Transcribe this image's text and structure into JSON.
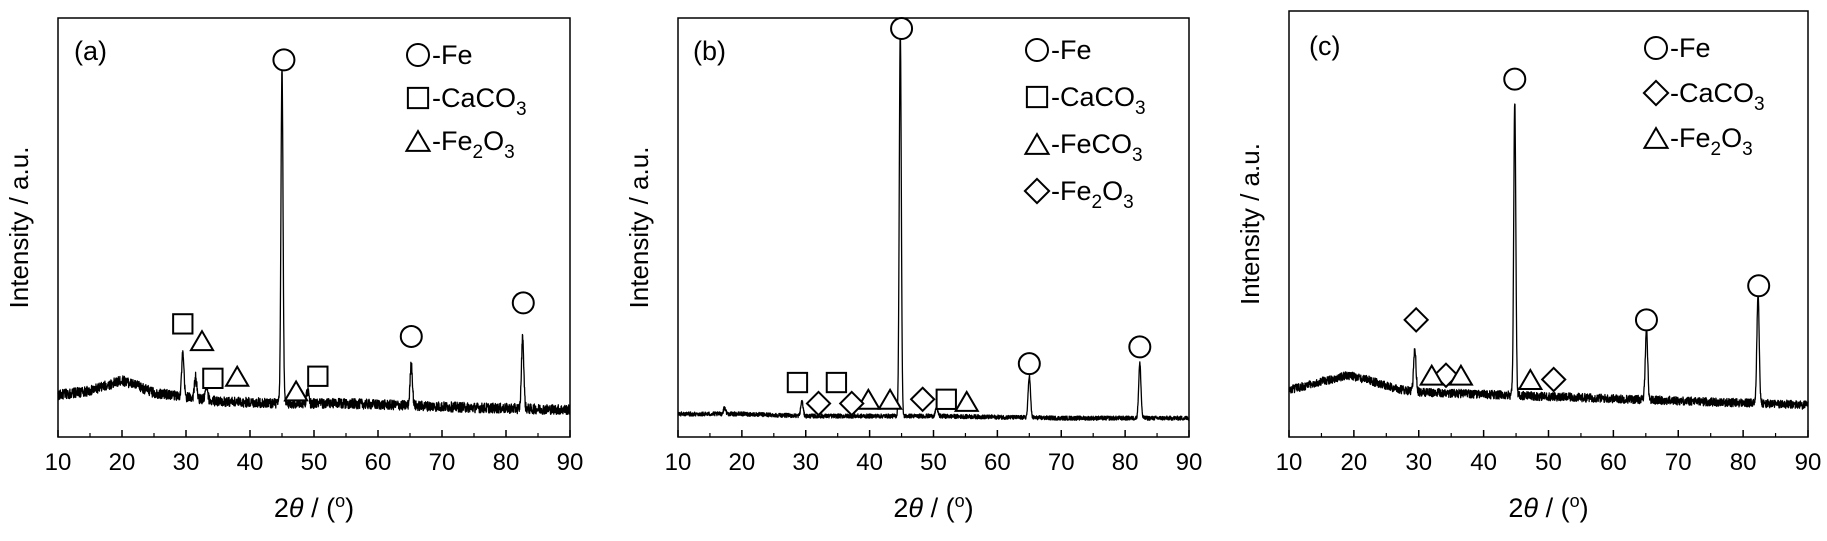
{
  "chart_data": [
    {
      "type": "line",
      "panel_label": "(a)",
      "xlabel_prefix": "2",
      "xlabel_theta": "θ",
      "xlabel_suffix": " / (",
      "xlabel_unit": "o",
      "xlabel_close": ")",
      "ylabel": "Intensity / a.u.",
      "xlim": [
        10,
        90
      ],
      "ylim": [
        0,
        100
      ],
      "xticks": [
        "10",
        "20",
        "30",
        "40",
        "50",
        "60",
        "70",
        "80",
        "90"
      ],
      "legend": [
        {
          "marker": "circle",
          "text": "-Fe",
          "sub": "",
          "tail": ""
        },
        {
          "marker": "square",
          "text": "-CaCO",
          "sub": "3",
          "tail": ""
        },
        {
          "marker": "triangle",
          "text": "-Fe",
          "sub": "2",
          "tail": "O",
          "sub2": "3"
        }
      ],
      "baseline": [
        [
          10,
          10
        ],
        [
          15,
          11
        ],
        [
          20,
          13.5
        ],
        [
          22,
          12.5
        ],
        [
          25,
          10.5
        ],
        [
          28,
          10
        ],
        [
          35,
          8.5
        ],
        [
          45,
          8
        ],
        [
          55,
          8
        ],
        [
          65,
          7.5
        ],
        [
          75,
          7
        ],
        [
          90,
          6.5
        ]
      ],
      "noise": 1.2,
      "peaks": [
        {
          "x": 29.5,
          "h": 10
        },
        {
          "x": 31.5,
          "h": 5
        },
        {
          "x": 33.2,
          "h": 3
        },
        {
          "x": 45.0,
          "h": 80
        },
        {
          "x": 49.0,
          "h": 3
        },
        {
          "x": 65.2,
          "h": 10
        },
        {
          "x": 82.6,
          "h": 17
        }
      ],
      "markers": [
        {
          "shape": "circle",
          "x": 45.3,
          "y": 90
        },
        {
          "shape": "circle",
          "x": 65.2,
          "y": 24
        },
        {
          "shape": "circle",
          "x": 82.7,
          "y": 32
        },
        {
          "shape": "square",
          "x": 29.5,
          "y": 27
        },
        {
          "shape": "square",
          "x": 34.2,
          "y": 14
        },
        {
          "shape": "square",
          "x": 50.6,
          "y": 14.5
        },
        {
          "shape": "triangle",
          "x": 32.5,
          "y": 23
        },
        {
          "shape": "triangle",
          "x": 38.0,
          "y": 14.5
        },
        {
          "shape": "triangle",
          "x": 47.2,
          "y": 11
        }
      ]
    },
    {
      "type": "line",
      "panel_label": "(b)",
      "xlabel_prefix": "2",
      "xlabel_theta": "θ",
      "xlabel_suffix": " / (",
      "xlabel_unit": "o",
      "xlabel_close": ")",
      "ylabel": "Intensity / a.u.",
      "xlim": [
        10,
        90
      ],
      "ylim": [
        0,
        100
      ],
      "xticks": [
        "10",
        "20",
        "30",
        "40",
        "50",
        "60",
        "70",
        "80",
        "90"
      ],
      "legend": [
        {
          "marker": "circle",
          "text": "-Fe",
          "sub": "",
          "tail": ""
        },
        {
          "marker": "square",
          "text": "-CaCO",
          "sub": "3",
          "tail": ""
        },
        {
          "marker": "triangle",
          "text": "-FeCO",
          "sub": "3",
          "tail": ""
        },
        {
          "marker": "diamond",
          "text": "-Fe",
          "sub": "2",
          "tail": "O",
          "sub2": "3"
        }
      ],
      "baseline": [
        [
          10,
          5.5
        ],
        [
          20,
          5.5
        ],
        [
          30,
          5
        ],
        [
          50,
          5
        ],
        [
          70,
          4.5
        ],
        [
          90,
          4.5
        ]
      ],
      "noise": 0.5,
      "peaks": [
        {
          "x": 17.3,
          "h": 1.5
        },
        {
          "x": 29.4,
          "h": 3.5
        },
        {
          "x": 44.8,
          "h": 92
        },
        {
          "x": 50.5,
          "h": 2
        },
        {
          "x": 65.0,
          "h": 10
        },
        {
          "x": 82.3,
          "h": 13
        }
      ],
      "markers": [
        {
          "shape": "circle",
          "x": 45.0,
          "y": 97.5
        },
        {
          "shape": "circle",
          "x": 65.0,
          "y": 17.5
        },
        {
          "shape": "circle",
          "x": 82.3,
          "y": 21.5
        },
        {
          "shape": "square",
          "x": 28.7,
          "y": 13
        },
        {
          "shape": "square",
          "x": 34.8,
          "y": 13
        },
        {
          "shape": "square",
          "x": 52.0,
          "y": 9
        },
        {
          "shape": "triangle",
          "x": 39.8,
          "y": 9
        },
        {
          "shape": "triangle",
          "x": 43.2,
          "y": 9
        },
        {
          "shape": "triangle",
          "x": 55.2,
          "y": 8.5
        },
        {
          "shape": "diamond",
          "x": 32.0,
          "y": 8
        },
        {
          "shape": "diamond",
          "x": 37.2,
          "y": 8
        },
        {
          "shape": "diamond",
          "x": 48.3,
          "y": 9
        }
      ]
    },
    {
      "type": "line",
      "panel_label": "(c)",
      "xlabel_prefix": "2",
      "xlabel_theta": "θ",
      "xlabel_suffix": " / (",
      "xlabel_unit": "o",
      "xlabel_close": ")",
      "ylabel": "Intensity / a.u.",
      "xlim": [
        10,
        90
      ],
      "ylim": [
        0,
        100
      ],
      "xticks": [
        "10",
        "20",
        "30",
        "40",
        "50",
        "60",
        "70",
        "80",
        "90"
      ],
      "legend": [
        {
          "marker": "circle",
          "text": "-Fe",
          "sub": "",
          "tail": ""
        },
        {
          "marker": "diamond",
          "text": "-CaCO",
          "sub": "3",
          "tail": ""
        },
        {
          "marker": "triangle",
          "text": "-Fe",
          "sub": "2",
          "tail": "O",
          "sub2": "3"
        }
      ],
      "baseline": [
        [
          10,
          11
        ],
        [
          15,
          13
        ],
        [
          19,
          14.5
        ],
        [
          22,
          13.5
        ],
        [
          26,
          11.5
        ],
        [
          30,
          10.5
        ],
        [
          40,
          10
        ],
        [
          50,
          9.5
        ],
        [
          60,
          9
        ],
        [
          70,
          8.5
        ],
        [
          80,
          8
        ],
        [
          90,
          7.5
        ]
      ],
      "noise": 1.0,
      "peaks": [
        {
          "x": 29.4,
          "h": 10
        },
        {
          "x": 44.8,
          "h": 69
        },
        {
          "x": 65.1,
          "h": 17
        },
        {
          "x": 82.3,
          "h": 26
        }
      ],
      "markers": [
        {
          "shape": "circle",
          "x": 44.8,
          "y": 84
        },
        {
          "shape": "circle",
          "x": 65.1,
          "y": 27.5
        },
        {
          "shape": "circle",
          "x": 82.4,
          "y": 35.5
        },
        {
          "shape": "diamond",
          "x": 29.6,
          "y": 27.5
        },
        {
          "shape": "diamond",
          "x": 34.2,
          "y": 14.5
        },
        {
          "shape": "diamond",
          "x": 50.8,
          "y": 13.5
        },
        {
          "shape": "triangle",
          "x": 32.0,
          "y": 14.5
        },
        {
          "shape": "triangle",
          "x": 36.5,
          "y": 14.5
        },
        {
          "shape": "triangle",
          "x": 47.2,
          "y": 13.5
        }
      ]
    }
  ]
}
